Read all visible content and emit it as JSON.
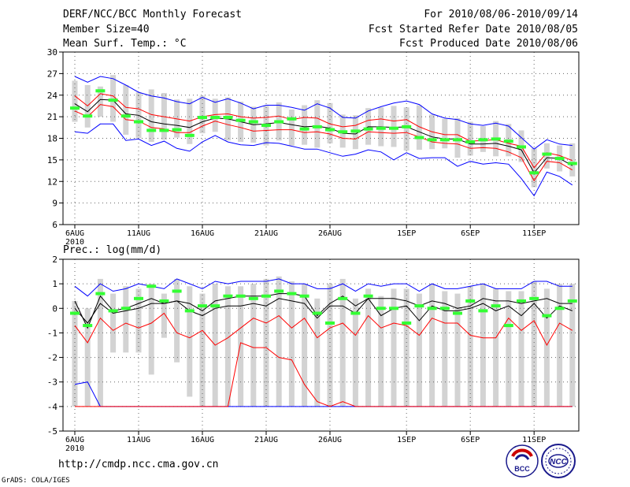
{
  "header": {
    "title": "DERF/NCC/BCC Monthly Forecast",
    "member_size": "Member Size=40",
    "variable": "Mean Surf. Temp.: °C",
    "period": "For 2010/08/06-2010/09/14",
    "started": "Fcst Started Refer Date 2010/08/05",
    "produced": "Fcst Produced Date 2010/08/06"
  },
  "footer": {
    "url": "http://cmdp.ncc.cma.gov.cn",
    "grads": "GrADS: COLA/IGES",
    "logo_left": "BCC",
    "logo_right": "NCC"
  },
  "colors": {
    "box": "#d3d3d3",
    "max_line": "#0000ff",
    "mean_line": "#000000",
    "band_line": "#ff0000",
    "observed": "#33ff33"
  },
  "chart_data": [
    {
      "type": "line",
      "title": "Mean Surf. Temp.: °C",
      "ylim": [
        6,
        30
      ],
      "yticks": [
        "6",
        "9",
        "12",
        "15",
        "18",
        "21",
        "24",
        "27",
        "30"
      ],
      "xticks": [
        "6AUG",
        "11AUG",
        "16AUG",
        "21AUG",
        "26AUG",
        "1SEP",
        "6SEP",
        "11SEP"
      ],
      "xtick_day_index": [
        0,
        5,
        10,
        15,
        20,
        26,
        31,
        36
      ],
      "year_label": "2010",
      "grid": true,
      "days": 40,
      "series": [
        {
          "name": "ensemble max",
          "color": "#0000ff",
          "values": [
            26.6,
            25.8,
            26.6,
            26.3,
            25.4,
            24.4,
            23.9,
            23.6,
            23.1,
            22.8,
            23.7,
            23.0,
            23.5,
            22.9,
            22.1,
            22.6,
            22.6,
            22.3,
            21.9,
            22.8,
            22.2,
            20.9,
            20.8,
            21.8,
            22.4,
            22.9,
            23.2,
            22.7,
            21.4,
            20.8,
            20.6,
            20.0,
            19.8,
            20.1,
            19.7,
            18.1,
            16.5,
            17.8,
            17.2,
            17.0
          ]
        },
        {
          "name": "upper",
          "color": "#ff0000",
          "values": [
            23.9,
            22.5,
            24.2,
            23.9,
            22.3,
            22.1,
            21.3,
            21.0,
            20.7,
            20.4,
            21.0,
            21.3,
            21.4,
            21.0,
            20.8,
            20.9,
            21.1,
            20.6,
            20.9,
            20.8,
            20.0,
            19.6,
            19.8,
            20.5,
            20.7,
            20.4,
            20.6,
            19.6,
            18.9,
            18.5,
            18.5,
            17.6,
            17.7,
            17.8,
            17.3,
            16.9,
            13.9,
            16.0,
            15.6,
            14.9
          ]
        },
        {
          "name": "mean",
          "color": "#000000",
          "values": [
            22.8,
            21.7,
            23.4,
            23.3,
            21.4,
            21.2,
            20.3,
            20.0,
            19.8,
            19.5,
            20.3,
            20.8,
            20.7,
            20.3,
            19.9,
            20.0,
            20.2,
            19.9,
            19.6,
            19.7,
            19.4,
            18.7,
            18.6,
            19.6,
            19.6,
            19.5,
            19.6,
            18.9,
            18.2,
            17.9,
            17.9,
            17.2,
            17.2,
            17.3,
            16.9,
            16.4,
            13.2,
            15.3,
            15.2,
            14.2
          ]
        },
        {
          "name": "lower",
          "color": "#ff0000",
          "values": [
            21.8,
            21.0,
            22.7,
            22.4,
            20.6,
            20.4,
            19.5,
            19.3,
            18.8,
            18.8,
            19.7,
            20.4,
            19.9,
            19.5,
            19.0,
            19.1,
            19.2,
            19.2,
            18.8,
            18.9,
            18.6,
            18.0,
            17.9,
            18.9,
            18.8,
            18.7,
            18.8,
            18.2,
            17.5,
            17.3,
            17.2,
            16.6,
            16.7,
            16.6,
            16.1,
            15.3,
            12.1,
            14.8,
            14.6,
            13.6
          ]
        },
        {
          "name": "ensemble min",
          "color": "#0000ff",
          "values": [
            18.9,
            18.7,
            20.0,
            20.0,
            17.7,
            17.9,
            17.0,
            17.6,
            16.6,
            16.2,
            17.5,
            18.4,
            17.5,
            17.1,
            17.0,
            17.4,
            17.3,
            16.9,
            16.5,
            16.5,
            16.0,
            15.5,
            15.8,
            16.4,
            16.1,
            15.0,
            16.0,
            15.2,
            15.3,
            15.3,
            14.1,
            14.8,
            14.4,
            14.6,
            14.4,
            12.4,
            10.0,
            13.3,
            12.7,
            11.5
          ]
        }
      ],
      "observed": [
        22.2,
        21.1,
        24.6,
        23.3,
        21.1,
        20.3,
        19.1,
        19.1,
        19.2,
        18.4,
        20.9,
        20.9,
        20.9,
        20.5,
        20.3,
        19.8,
        20.3,
        20.7,
        19.3,
        19.6,
        19.2,
        18.9,
        19.0,
        19.3,
        19.4,
        19.4,
        19.6,
        18.1,
        17.8,
        17.8,
        17.8,
        17.5,
        17.8,
        17.9,
        17.6,
        16.8,
        13.2,
        15.8,
        15.2,
        14.5
      ],
      "box": {
        "top": [
          26.0,
          25.4,
          25.2,
          26.8,
          25.4,
          24.4,
          24.8,
          24.3,
          23.4,
          23.5,
          23.9,
          23.5,
          23.7,
          23.1,
          22.4,
          22.5,
          23.0,
          22.0,
          22.6,
          23.3,
          22.9,
          21.3,
          21.2,
          22.2,
          22.3,
          22.5,
          22.3,
          22.6,
          21.3,
          20.7,
          20.8,
          20.3,
          19.7,
          20.4,
          20.0,
          19.1,
          16.6,
          17.3,
          17.0,
          17.3
        ],
        "bottom": [
          20.3,
          19.5,
          21.0,
          20.3,
          18.5,
          18.0,
          17.5,
          17.8,
          18.1,
          17.2,
          18.7,
          18.9,
          17.7,
          17.5,
          17.4,
          17.0,
          17.7,
          17.0,
          17.1,
          16.7,
          17.3,
          16.7,
          16.5,
          17.1,
          16.9,
          16.8,
          16.3,
          16.4,
          16.5,
          16.6,
          15.3,
          15.6,
          16.1,
          15.5,
          15.5,
          14.7,
          11.2,
          13.8,
          13.4,
          12.7
        ]
      }
    },
    {
      "type": "line",
      "title": "Prec.: log(mm/d)",
      "ylim": [
        -5,
        2
      ],
      "yticks": [
        "-5",
        "-4",
        "-3",
        "-2",
        "-1",
        "0",
        "1",
        "2"
      ],
      "xticks": [
        "6AUG",
        "11AUG",
        "16AUG",
        "21AUG",
        "26AUG",
        "1SEP",
        "6SEP",
        "11SEP"
      ],
      "xtick_day_index": [
        0,
        5,
        10,
        15,
        20,
        26,
        31,
        36
      ],
      "year_label": "2010",
      "grid": true,
      "days": 40,
      "series": [
        {
          "name": "ensemble max",
          "color": "#0000ff",
          "values": [
            0.9,
            0.5,
            1.0,
            0.7,
            0.8,
            1.0,
            0.9,
            0.8,
            1.2,
            1.0,
            0.8,
            1.1,
            1.0,
            1.1,
            1.1,
            1.1,
            1.2,
            1.0,
            1.0,
            0.8,
            0.8,
            1.0,
            0.7,
            1.0,
            0.9,
            1.0,
            1.0,
            0.7,
            1.0,
            0.8,
            0.8,
            0.9,
            1.0,
            0.8,
            0.8,
            0.8,
            1.1,
            1.1,
            0.9,
            0.9
          ]
        },
        {
          "name": "upper",
          "color": "#000000",
          "values": [
            0.3,
            -0.8,
            0.5,
            -0.1,
            0.0,
            0.2,
            0.4,
            0.2,
            0.3,
            0.2,
            -0.1,
            0.3,
            0.4,
            0.5,
            0.5,
            0.5,
            0.6,
            0.6,
            0.5,
            -0.3,
            0.2,
            0.5,
            0.1,
            0.4,
            0.4,
            0.4,
            0.3,
            0.1,
            0.3,
            0.2,
            0.0,
            0.1,
            0.4,
            0.3,
            0.3,
            0.2,
            0.3,
            0.4,
            0.2,
            0.2
          ]
        },
        {
          "name": "mean",
          "color": "#000000",
          "values": [
            0.0,
            -0.6,
            0.2,
            -0.2,
            -0.1,
            0.0,
            0.2,
            0.2,
            0.3,
            -0.1,
            -0.3,
            0.0,
            0.1,
            0.1,
            0.2,
            0.1,
            0.4,
            0.3,
            0.2,
            -0.4,
            0.1,
            0.1,
            -0.2,
            0.4,
            -0.3,
            0.0,
            0.1,
            -0.5,
            0.1,
            -0.1,
            -0.1,
            0.0,
            0.2,
            -0.1,
            0.1,
            -0.3,
            0.2,
            -0.4,
            0.1,
            -0.1
          ]
        },
        {
          "name": "lower",
          "color": "#ff0000",
          "values": [
            -0.7,
            -1.4,
            -0.4,
            -0.9,
            -0.6,
            -0.8,
            -0.6,
            -0.2,
            -1.0,
            -1.2,
            -0.9,
            -1.5,
            -1.2,
            -0.8,
            -0.4,
            -0.6,
            -0.3,
            -0.8,
            -0.4,
            -1.2,
            -0.8,
            -0.6,
            -1.1,
            -0.3,
            -0.8,
            -0.6,
            -0.7,
            -1.1,
            -0.4,
            -0.6,
            -0.6,
            -1.1,
            -1.2,
            -1.2,
            -0.4,
            -0.9,
            -0.5,
            -1.5,
            -0.6,
            -0.9
          ]
        },
        {
          "name": "ensemble min",
          "color": "#0000ff",
          "values": [
            -3.1,
            -3.0,
            -4.0,
            -4.0,
            -4.0,
            -4.0,
            -4.0,
            -4.0,
            -4.0,
            -4.0,
            -4.0,
            -4.0,
            -4.0,
            -4.0,
            -4.0,
            -4.0,
            -4.0,
            -4.0,
            -4.0,
            -4.0,
            -4.0,
            -4.0,
            -4.0,
            -4.0,
            -4.0,
            -4.0,
            -4.0,
            -4.0,
            -4.0,
            -4.0,
            -4.0,
            -4.0,
            -4.0,
            -4.0,
            -4.0,
            -4.0,
            -4.0,
            -4.0,
            -4.0,
            -4.0
          ]
        },
        {
          "name": "lowest",
          "color": "#ff0000",
          "values": [
            -4.0,
            -4.0,
            -4.0,
            -4.0,
            -4.0,
            -4.0,
            -4.0,
            -4.0,
            -4.0,
            -4.0,
            -4.0,
            -4.0,
            -4.0,
            -1.4,
            -1.6,
            -1.6,
            -2.0,
            -2.1,
            -3.1,
            -3.8,
            -4.0,
            -3.8,
            -4.0,
            -4.0,
            -4.0,
            -4.0,
            -4.0,
            -4.0,
            -4.0,
            -4.0,
            -4.0,
            -4.0,
            -4.0,
            -4.0,
            -4.0,
            -4.0,
            -4.0,
            -4.0,
            -4.0,
            -4.0
          ]
        }
      ],
      "observed": [
        -0.2,
        -0.7,
        0.6,
        -0.1,
        0.0,
        0.4,
        0.9,
        0.3,
        0.7,
        -0.1,
        0.1,
        0.1,
        0.5,
        0.5,
        0.4,
        0.5,
        0.7,
        0.6,
        0.5,
        -0.2,
        -0.6,
        0.4,
        -0.2,
        0.5,
        0.0,
        0.0,
        -0.6,
        0.1,
        0.0,
        0.0,
        -0.2,
        0.3,
        -0.1,
        0.1,
        -0.7,
        0.3,
        0.4,
        -0.3,
        0.0,
        0.3
      ],
      "box": {
        "top": [
          0.3,
          0.0,
          1.2,
          0.6,
          0.9,
          0.8,
          1.0,
          0.6,
          1.2,
          0.9,
          0.6,
          1.0,
          0.9,
          0.9,
          1.0,
          1.2,
          1.3,
          1.1,
          1.0,
          0.4,
          1.0,
          1.2,
          0.4,
          0.8,
          0.5,
          0.8,
          0.8,
          0.6,
          1.0,
          0.7,
          0.6,
          0.9,
          1.0,
          0.8,
          0.7,
          0.7,
          1.1,
          0.8,
          1.0,
          1.0
        ],
        "bottom": [
          -4.0,
          -4.0,
          -4.0,
          -1.8,
          -1.8,
          -1.8,
          -2.7,
          -1.2,
          -2.2,
          -3.6,
          -4.0,
          -4.0,
          -4.0,
          -4.0,
          -4.0,
          -4.0,
          -4.0,
          -4.0,
          -4.0,
          -4.0,
          -4.0,
          -4.0,
          -4.0,
          -4.0,
          -4.0,
          -4.0,
          -4.0,
          -4.0,
          -4.0,
          -4.0,
          -4.0,
          -4.0,
          -4.0,
          -4.0,
          -4.0,
          -4.0,
          -4.0,
          -4.0,
          -4.0,
          -4.0
        ]
      }
    }
  ]
}
